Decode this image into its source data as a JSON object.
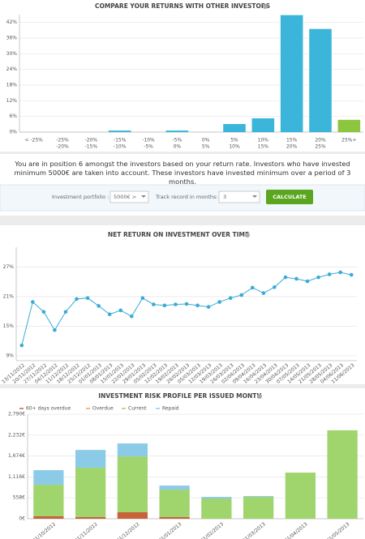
{
  "chart_data": [
    {
      "type": "bar",
      "title": "COMPARE YOUR RETURNS WITH OTHER INVESTORS",
      "categories": [
        [
          "< -25%"
        ],
        [
          "-25%",
          "-20%"
        ],
        [
          "-20%",
          "-15%"
        ],
        [
          "-15%",
          "-10%"
        ],
        [
          "-10%",
          "-5%"
        ],
        [
          "-5%",
          "0%"
        ],
        [
          "0%",
          "5%"
        ],
        [
          "5%",
          "10%"
        ],
        [
          "10%",
          "15%"
        ],
        [
          "15%",
          "20%"
        ],
        [
          "20%",
          "25%"
        ],
        [
          "25%+"
        ]
      ],
      "values": [
        0,
        0,
        0,
        0.6,
        0,
        0.6,
        0,
        3.1,
        5.3,
        44.8,
        39.5,
        4.7
      ],
      "colors": [
        "#3bb5d9",
        "#3bb5d9",
        "#3bb5d9",
        "#3bb5d9",
        "#3bb5d9",
        "#3bb5d9",
        "#3bb5d9",
        "#3bb5d9",
        "#3bb5d9",
        "#3bb5d9",
        "#3bb5d9",
        "#8cc63f"
      ],
      "ylim": [
        0,
        45
      ],
      "yticks": [
        {
          "value": 0,
          "label": "0%"
        },
        {
          "value": 6,
          "label": "6%"
        },
        {
          "value": 12,
          "label": "12%"
        },
        {
          "value": 18,
          "label": "18%"
        },
        {
          "value": 24,
          "label": "24%"
        },
        {
          "value": 30,
          "label": "30%"
        },
        {
          "value": 36,
          "label": "36%"
        },
        {
          "value": 42,
          "label": "42%"
        }
      ],
      "grid": true
    },
    {
      "type": "line",
      "title": "NET RETURN ON INVESTMENT OVER TIME",
      "x": [
        "13/11/2012",
        "20/11/2012",
        "27/11/2012",
        "04/12/2012",
        "11/12/2012",
        "18/12/2012",
        "25/12/2012",
        "01/01/2013",
        "08/01/2013",
        "15/01/2013",
        "22/01/2013",
        "29/01/2013",
        "05/02/2013",
        "12/02/2013",
        "19/02/2013",
        "26/02/2013",
        "05/03/2013",
        "12/03/2013",
        "19/03/2013",
        "26/03/2013",
        "02/04/2013",
        "09/04/2013",
        "16/04/2013",
        "23/04/2013",
        "30/04/2013",
        "07/05/2013",
        "14/05/2013",
        "21/05/2013",
        "28/05/2013",
        "04/06/2013",
        "11/06/2013"
      ],
      "values": [
        11.1,
        19.9,
        17.9,
        14.2,
        17.9,
        20.5,
        20.7,
        19.1,
        17.4,
        18.2,
        17.0,
        20.7,
        19.4,
        19.2,
        19.4,
        19.5,
        19.2,
        18.9,
        19.9,
        20.7,
        21.3,
        22.8,
        21.7,
        22.9,
        24.9,
        24.6,
        24.1,
        24.9,
        25.5,
        25.9,
        25.4
      ],
      "color": "#3aabd6",
      "ylim": [
        8,
        31
      ],
      "yticks": [
        {
          "value": 9,
          "label": "9%"
        },
        {
          "value": 15,
          "label": "15%"
        },
        {
          "value": 21,
          "label": "21%"
        },
        {
          "value": 27,
          "label": "27%"
        }
      ],
      "grid": true
    },
    {
      "type": "stacked_bar",
      "title": "INVESTMENT RISK PROFILE PER ISSUED MONTH",
      "categories": [
        "01/10/2012",
        "01/11/2012",
        "01/12/2012",
        "01/01/2013",
        "01/02/2013",
        "01/03/2013",
        "01/04/2013",
        "01/05/2013"
      ],
      "series": [
        {
          "name": "60+ days overdue",
          "color": "#c8623a",
          "values": [
            65,
            43,
            173,
            43,
            0,
            0,
            0,
            0
          ]
        },
        {
          "name": "Overdue",
          "color": "#f2a34b",
          "values": [
            0,
            0,
            0,
            0,
            0,
            0,
            0,
            0
          ]
        },
        {
          "name": "Current",
          "color": "#a0d46c",
          "values": [
            842,
            1318,
            1490,
            734,
            540,
            583,
            1231,
            2360
          ]
        },
        {
          "name": "Repaid",
          "color": "#8ccbe8",
          "values": [
            389,
            475,
            346,
            108,
            43,
            22,
            0,
            0
          ]
        }
      ],
      "ylim": [
        0,
        2790
      ],
      "yticks": [
        {
          "value": 0,
          "label": "0€"
        },
        {
          "value": 558,
          "label": "558€"
        },
        {
          "value": 1116,
          "label": "1,116€"
        },
        {
          "value": 1674,
          "label": "1,674€"
        },
        {
          "value": 2232,
          "label": "2,232€"
        },
        {
          "value": 2790,
          "label": "2,790€"
        }
      ],
      "legend": "top-left",
      "grid": true
    }
  ],
  "info": "You are in position 6 amongst the investors based on your return rate. Investors who have invested minimum 5000€ are taken into account. These investors have invested minimum over a period of 3 months.",
  "form": {
    "portfolio_label": "Investment portfolio :",
    "portfolio_value": "5000€ >",
    "months_label": "Track record in months:",
    "months_value": "3",
    "button": "CALCULATE"
  }
}
